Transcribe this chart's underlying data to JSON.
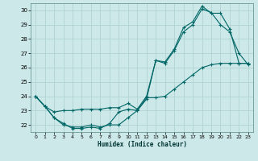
{
  "xlabel": "Humidex (Indice chaleur)",
  "xlim": [
    -0.5,
    23.5
  ],
  "ylim": [
    21.5,
    30.5
  ],
  "yticks": [
    22,
    23,
    24,
    25,
    26,
    27,
    28,
    29,
    30
  ],
  "xticks": [
    0,
    1,
    2,
    3,
    4,
    5,
    6,
    7,
    8,
    9,
    10,
    11,
    12,
    13,
    14,
    15,
    16,
    17,
    18,
    19,
    20,
    21,
    22,
    23
  ],
  "bg_color": "#cce8e8",
  "grid_color": "#aacfcf",
  "line_color": "#006666",
  "lines": [
    {
      "x": [
        0,
        1,
        2,
        3,
        4,
        5,
        6,
        7,
        8,
        9,
        10,
        11,
        12,
        13,
        14,
        15,
        16,
        17,
        18,
        19,
        20,
        21,
        22,
        23
      ],
      "y": [
        24.0,
        23.3,
        22.5,
        22.1,
        21.75,
        21.75,
        21.85,
        21.75,
        22.1,
        22.9,
        23.1,
        23.0,
        23.8,
        26.5,
        26.3,
        27.2,
        28.5,
        29.0,
        30.1,
        29.85,
        29.0,
        28.5,
        27.0,
        26.2
      ]
    },
    {
      "x": [
        0,
        1,
        2,
        3,
        4,
        5,
        6,
        7,
        8,
        9,
        10,
        11,
        12,
        13,
        14,
        15,
        16,
        17,
        18,
        19,
        20,
        21,
        22,
        23
      ],
      "y": [
        24.0,
        23.3,
        22.9,
        23.0,
        23.0,
        23.1,
        23.1,
        23.1,
        23.2,
        23.2,
        23.5,
        23.1,
        24.0,
        26.5,
        26.4,
        27.3,
        28.8,
        29.2,
        30.3,
        29.8,
        29.8,
        28.7,
        26.3,
        26.3
      ]
    },
    {
      "x": [
        0,
        1,
        2,
        3,
        4,
        5,
        6,
        7,
        8,
        9,
        10,
        11,
        12,
        13,
        14,
        15,
        16,
        17,
        18,
        19,
        20,
        21,
        22,
        23
      ],
      "y": [
        24.0,
        23.3,
        22.5,
        22.0,
        21.85,
        21.85,
        22.0,
        21.85,
        22.0,
        22.0,
        22.5,
        23.0,
        23.9,
        23.9,
        24.0,
        24.5,
        25.0,
        25.5,
        26.0,
        26.2,
        26.3,
        26.3,
        26.3,
        26.3
      ]
    }
  ]
}
